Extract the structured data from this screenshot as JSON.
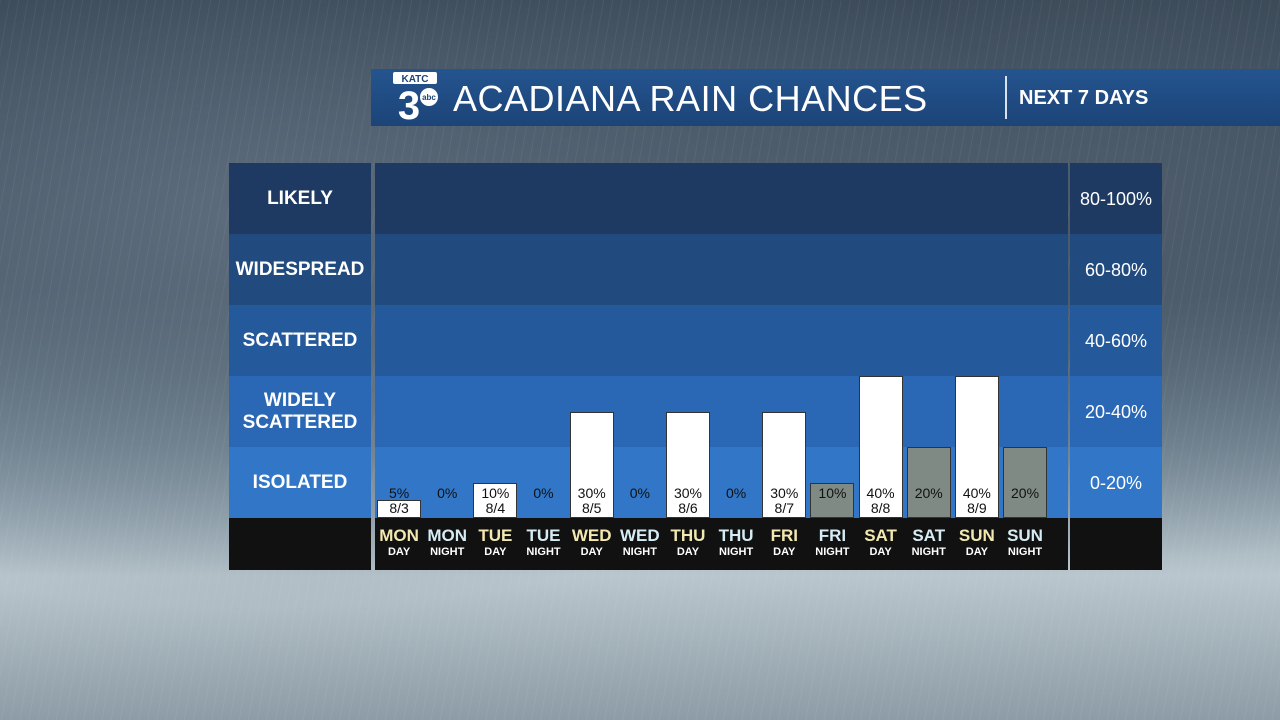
{
  "header": {
    "logo_text": "KATC",
    "logo_number": "3",
    "logo_network": "abc",
    "title": "ACADIANA RAIN CHANCES",
    "subtitle": "NEXT 7 DAYS"
  },
  "bands": [
    {
      "label": "LIKELY",
      "range": "80-100%",
      "color": "#1e3a63"
    },
    {
      "label": "WIDESPREAD",
      "range": "60-80%",
      "color": "#214a7e"
    },
    {
      "label": "SCATTERED",
      "range": "40-60%",
      "color": "#24599b"
    },
    {
      "label": "WIDELY SCATTERED",
      "range": "20-40%",
      "color": "#2a68b5"
    },
    {
      "label": "ISOLATED",
      "range": "0-20%",
      "color": "#3176c7"
    }
  ],
  "colors": {
    "day_bar": "#ffffff",
    "night_bar": "#808a84",
    "day_label": "#f3e9b0",
    "night_label": "#d6ecf5"
  },
  "chart_data": {
    "type": "bar",
    "ylim": [
      0,
      100
    ],
    "periods": [
      {
        "day": "MON",
        "part": "DAY",
        "value": 5,
        "label": "5%",
        "date": "8/3"
      },
      {
        "day": "MON",
        "part": "NIGHT",
        "value": 0,
        "label": "0%",
        "date": ""
      },
      {
        "day": "TUE",
        "part": "DAY",
        "value": 10,
        "label": "10%",
        "date": "8/4"
      },
      {
        "day": "TUE",
        "part": "NIGHT",
        "value": 0,
        "label": "0%",
        "date": ""
      },
      {
        "day": "WED",
        "part": "DAY",
        "value": 30,
        "label": "30%",
        "date": "8/5"
      },
      {
        "day": "WED",
        "part": "NIGHT",
        "value": 0,
        "label": "0%",
        "date": ""
      },
      {
        "day": "THU",
        "part": "DAY",
        "value": 30,
        "label": "30%",
        "date": "8/6"
      },
      {
        "day": "THU",
        "part": "NIGHT",
        "value": 0,
        "label": "0%",
        "date": ""
      },
      {
        "day": "FRI",
        "part": "DAY",
        "value": 30,
        "label": "30%",
        "date": "8/7"
      },
      {
        "day": "FRI",
        "part": "NIGHT",
        "value": 10,
        "label": "10%",
        "date": ""
      },
      {
        "day": "SAT",
        "part": "DAY",
        "value": 40,
        "label": "40%",
        "date": "8/8"
      },
      {
        "day": "SAT",
        "part": "NIGHT",
        "value": 20,
        "label": "20%",
        "date": ""
      },
      {
        "day": "SUN",
        "part": "DAY",
        "value": 40,
        "label": "40%",
        "date": "8/9"
      },
      {
        "day": "SUN",
        "part": "NIGHT",
        "value": 20,
        "label": "20%",
        "date": ""
      }
    ]
  }
}
